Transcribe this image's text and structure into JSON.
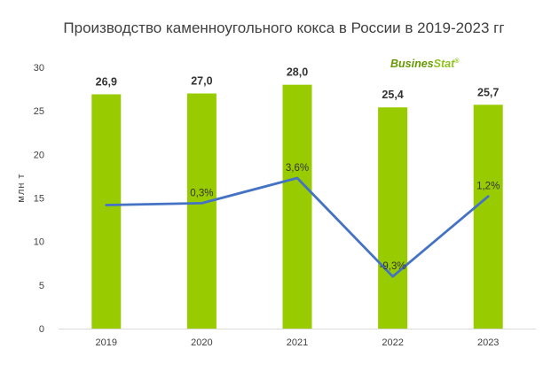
{
  "chart_data": {
    "type": "bar",
    "title": "Производство каменноугольного кокса в России в 2019-2023 гг",
    "ylabel": "млн т",
    "categories": [
      "2019",
      "2020",
      "2021",
      "2022",
      "2023"
    ],
    "values": [
      26.9,
      27.0,
      28.0,
      25.4,
      25.7
    ],
    "value_labels": [
      "26,9",
      "27,0",
      "28,0",
      "25,4",
      "25,7"
    ],
    "ylim": [
      0,
      30
    ],
    "yticks": [
      0,
      5,
      10,
      15,
      20,
      25,
      30
    ],
    "bar_color": "#99CC00",
    "line_series": {
      "values": [
        null,
        0.3,
        3.6,
        -9.3,
        1.2
      ],
      "labels": [
        "",
        "0,3%",
        "3,6%",
        "-9,3%",
        "1,2%"
      ],
      "color": "#4472C4"
    },
    "grid": false
  },
  "watermark": {
    "part1": "Busines",
    "part2": "Stat",
    "mark": "®",
    "color1": "#669900",
    "color2": "#8FC31F"
  }
}
